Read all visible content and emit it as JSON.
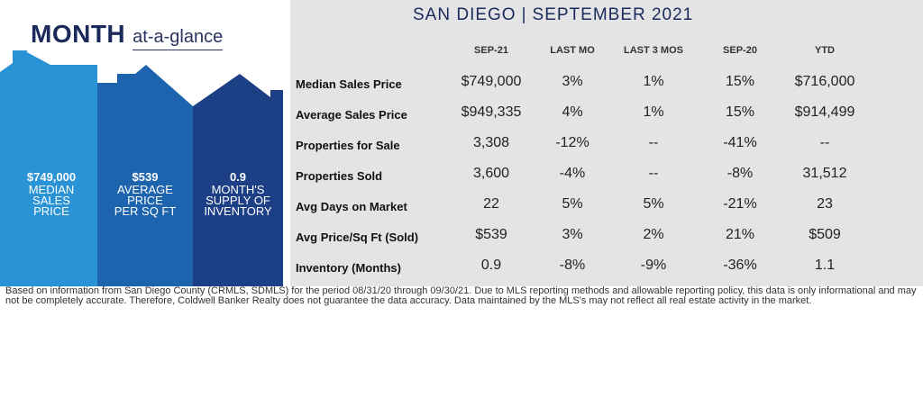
{
  "header": {
    "month": "MONTH",
    "at_a_glance": "at-a-glance",
    "city": "SAN DIEGO",
    "separator": "|",
    "period": "SEPTEMBER 2021"
  },
  "stats": [
    {
      "value": "$749,000",
      "label": "MEDIAN\nSALES\nPRICE"
    },
    {
      "value": "$539",
      "label": "AVERAGE\nPRICE\nPER SQ FT"
    },
    {
      "value": "0.9",
      "label": "MONTH'S\nSUPPLY OF\nINVENTORY"
    }
  ],
  "table": {
    "columns": [
      "SEP-21",
      "LAST MO",
      "LAST 3 MOS",
      "SEP-20",
      "YTD"
    ],
    "rows": [
      {
        "label": "Median Sales Price",
        "cells": [
          "$749,000",
          "3%",
          "1%",
          "15%",
          "$716,000"
        ]
      },
      {
        "label": "Average Sales Price",
        "cells": [
          "$949,335",
          "4%",
          "1%",
          "15%",
          "$914,499"
        ]
      },
      {
        "label": "Properties for Sale",
        "cells": [
          "3,308",
          "-12%",
          "--",
          "-41%",
          "--"
        ]
      },
      {
        "label": "Properties Sold",
        "cells": [
          "3,600",
          "-4%",
          "--",
          "-8%",
          "31,512"
        ]
      },
      {
        "label": "Avg Days on Market",
        "cells": [
          "22",
          "5%",
          "5%",
          "-21%",
          "23"
        ]
      },
      {
        "label": "Avg Price/Sq Ft (Sold)",
        "cells": [
          "$539",
          "3%",
          "2%",
          "21%",
          "$509"
        ]
      },
      {
        "label": "Inventory (Months)",
        "cells": [
          "0.9",
          "-8%",
          "-9%",
          "-36%",
          "1.1"
        ]
      }
    ]
  },
  "footer": "Based on information from San Diego County (CRMLS, SDMLS) for the period 08/31/20 through 09/30/21. Due to MLS reporting methods and allowable reporting policy, this data is only informational and may not be completely accurate. Therefore, Coldwell Banker Realty does not guarantee the data accuracy. Data maintained by the MLS's may not reflect all real estate activity in the market.",
  "colors": {
    "house1": "#2a93d5",
    "house2": "#1e63ad",
    "house3": "#1d3f86",
    "title": "#1a2a5a",
    "panel": "#e4e4e6"
  }
}
